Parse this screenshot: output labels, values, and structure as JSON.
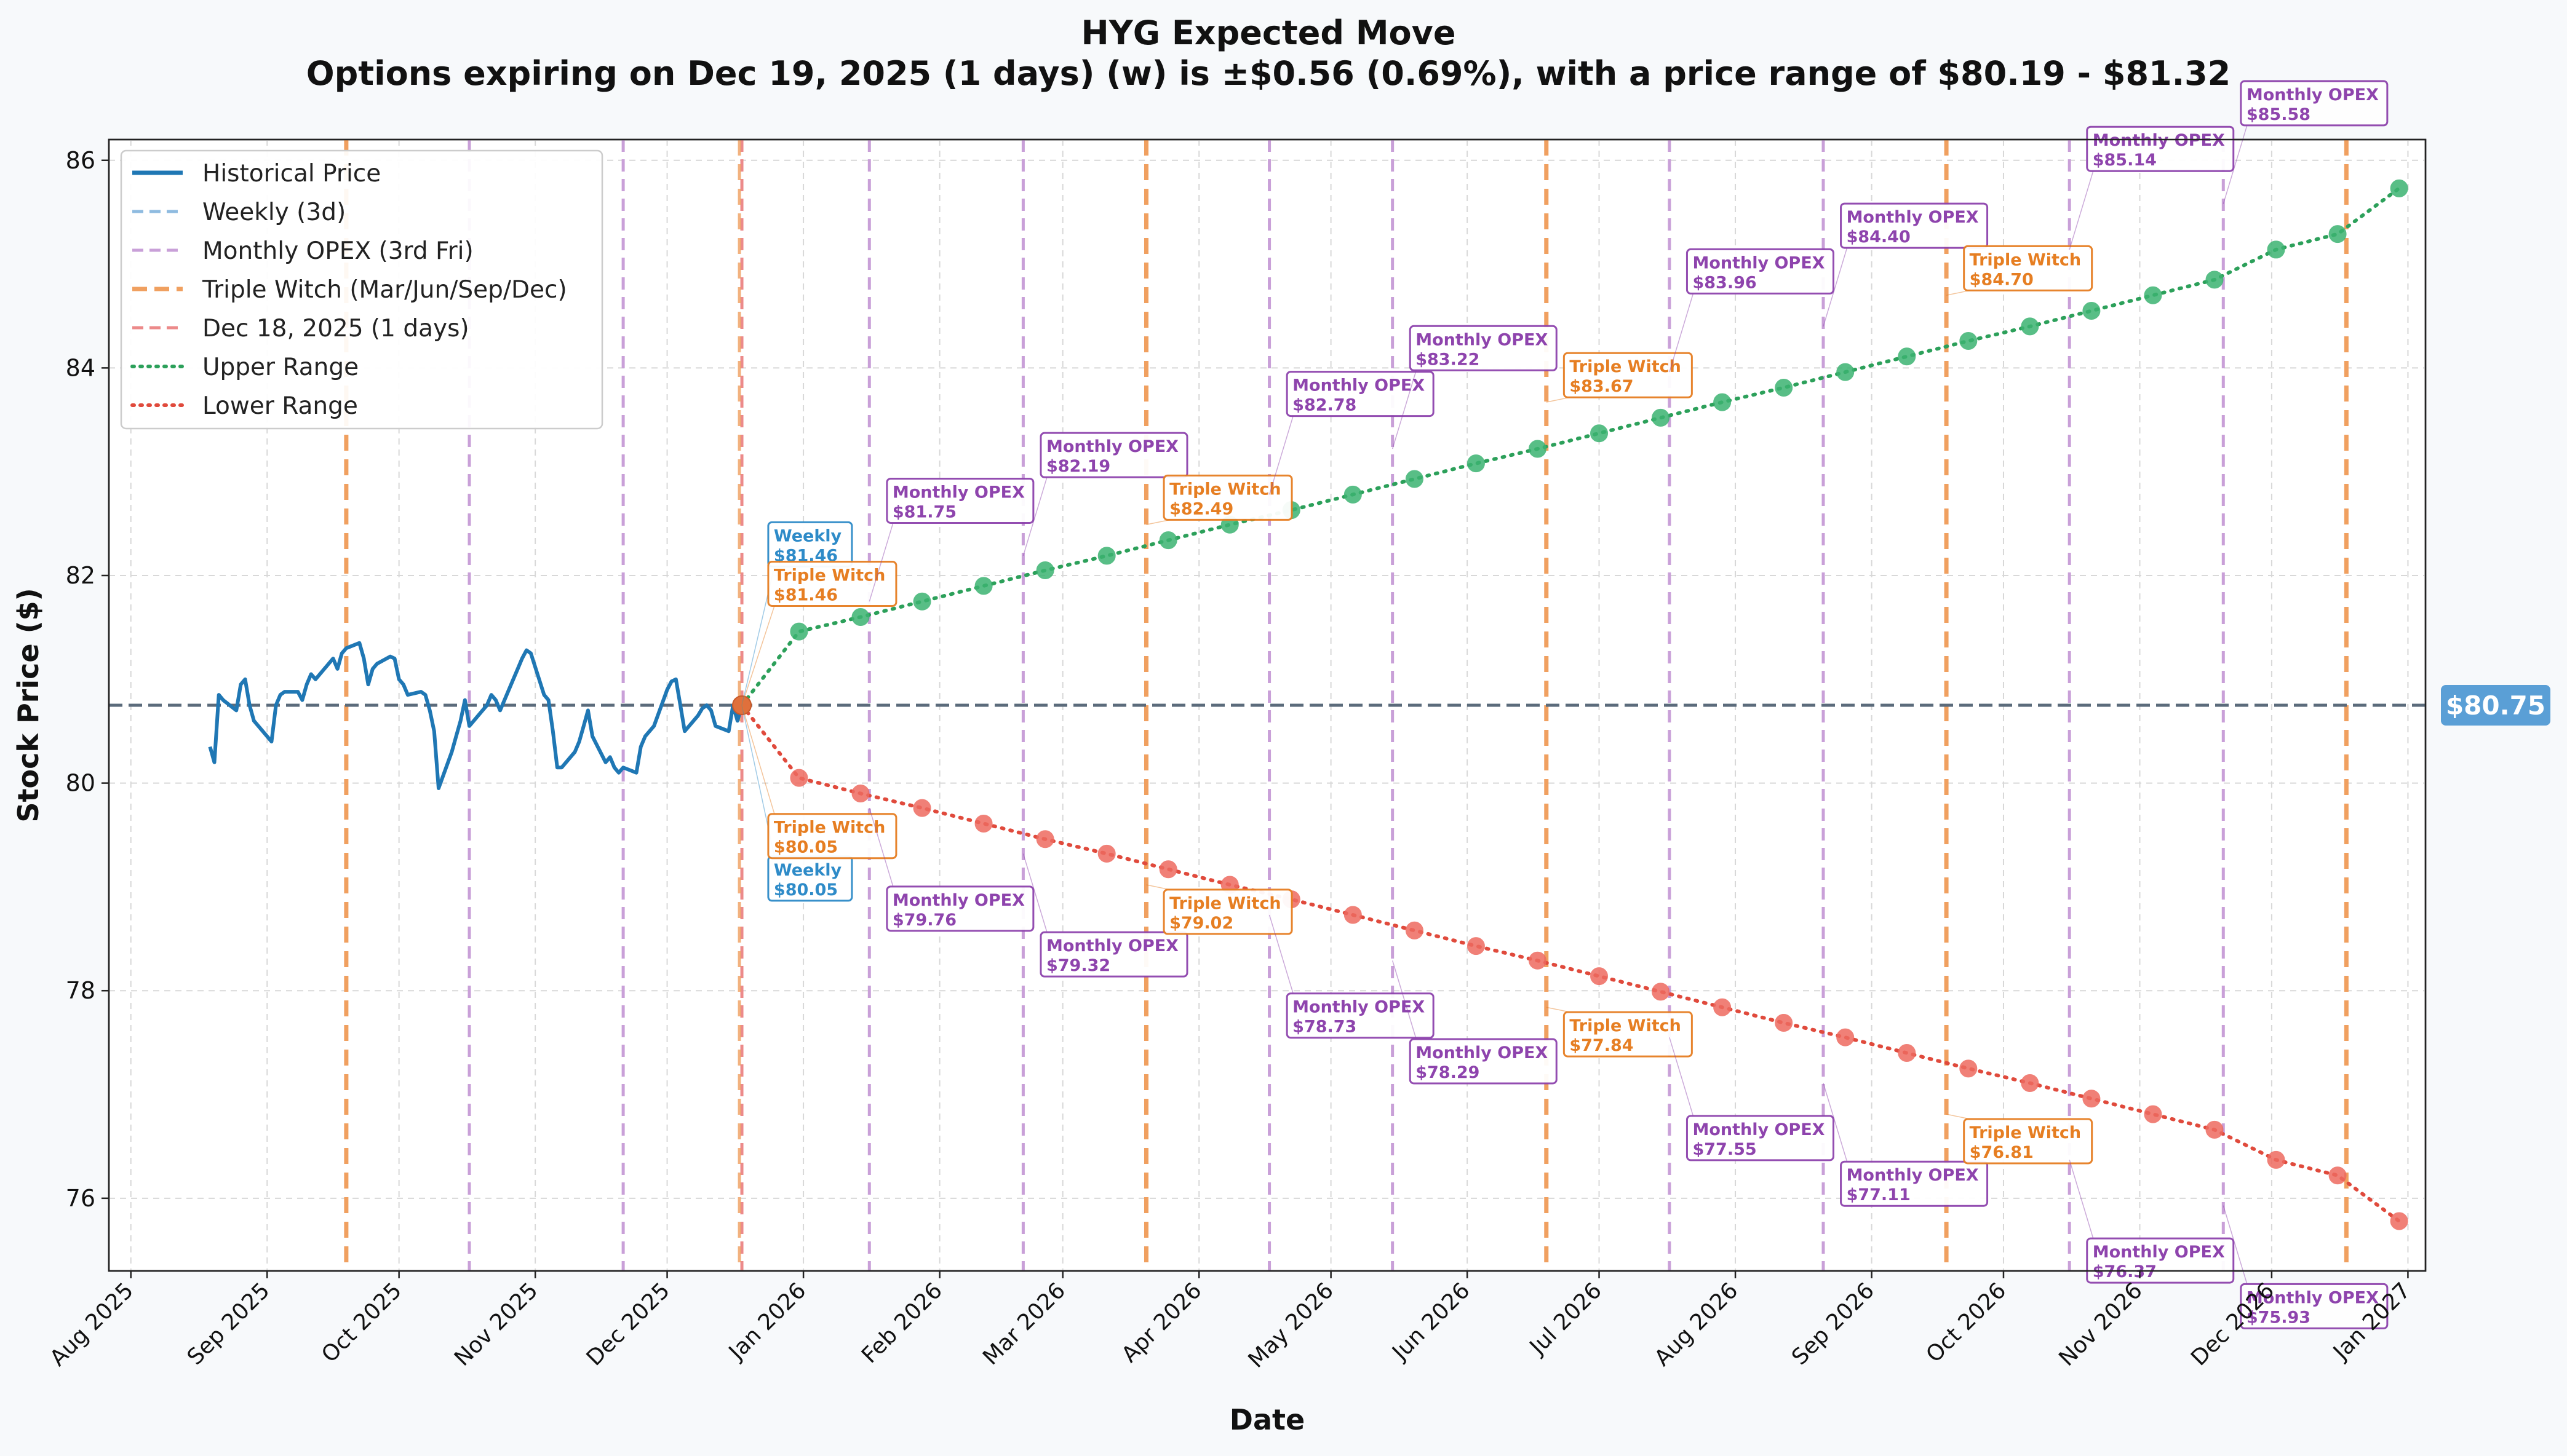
{
  "chart_data": {
    "type": "line",
    "title": "HYG Expected Move",
    "subtitle": "Options expiring on Dec 19, 2025 (1 days) (w) is ±$0.56 (0.69%), with a price range of $80.19 - $81.32",
    "xlabel": "Date",
    "ylabel": "Stock Price ($)",
    "xlim": [
      "2025-07-27",
      "2027-01-05"
    ],
    "ylim": [
      75.3,
      86.2
    ],
    "grid": true,
    "legend_position": "top-left",
    "x_tick_labels": [
      {
        "date": "2025-08-01",
        "label": "Aug 2025"
      },
      {
        "date": "2025-09-01",
        "label": "Sep 2025"
      },
      {
        "date": "2025-10-01",
        "label": "Oct 2025"
      },
      {
        "date": "2025-11-01",
        "label": "Nov 2025"
      },
      {
        "date": "2025-12-01",
        "label": "Dec 2025"
      },
      {
        "date": "2026-01-01",
        "label": "Jan 2026"
      },
      {
        "date": "2026-02-01",
        "label": "Feb 2026"
      },
      {
        "date": "2026-03-01",
        "label": "Mar 2026"
      },
      {
        "date": "2026-04-01",
        "label": "Apr 2026"
      },
      {
        "date": "2026-05-01",
        "label": "May 2026"
      },
      {
        "date": "2026-06-01",
        "label": "Jun 2026"
      },
      {
        "date": "2026-07-01",
        "label": "Jul 2026"
      },
      {
        "date": "2026-08-01",
        "label": "Aug 2026"
      },
      {
        "date": "2026-09-01",
        "label": "Sep 2026"
      },
      {
        "date": "2026-10-01",
        "label": "Oct 2026"
      },
      {
        "date": "2026-11-01",
        "label": "Nov 2026"
      },
      {
        "date": "2026-12-01",
        "label": "Dec 2026"
      },
      {
        "date": "2027-01-01",
        "label": "Jan 2027"
      }
    ],
    "y_ticks": [
      76,
      78,
      80,
      82,
      84,
      86
    ],
    "current_price": {
      "value": 80.75,
      "label": "$80.75",
      "color": "#5a9fd6"
    },
    "legend": [
      {
        "label": "Historical Price",
        "color": "#1f77b4",
        "style": "solid"
      },
      {
        "label": "Weekly (3d)",
        "color": "#8fbbe0",
        "style": "dashed"
      },
      {
        "label": "Monthly OPEX (3rd Fri)",
        "color": "#c9a0d8",
        "style": "dashed"
      },
      {
        "label": "Triple Witch (Mar/Jun/Sep/Dec)",
        "color": "#f0a060",
        "style": "dashed-thick"
      },
      {
        "label": "Dec 18, 2025 (1 days)",
        "color": "#ec8a8a",
        "style": "dashed"
      },
      {
        "label": "Upper Range",
        "color": "#2ca05a",
        "style": "dotted"
      },
      {
        "label": "Lower Range",
        "color": "#e04a3c",
        "style": "dotted"
      }
    ],
    "colors": {
      "historical": "#1f77b4",
      "monthly": "#c9a0d8",
      "triple": "#f0a060",
      "today": "#ec8a8a",
      "upper": "#2ca05a",
      "upper_marker": "#3cb371",
      "lower": "#e04a3c",
      "lower_marker": "#ee6a60",
      "monthly_text": "#8e44ad",
      "triple_text": "#e67e22",
      "weekly_text": "#2e8bc8",
      "current_line": "#5b6b7b"
    },
    "today_date": "2025-12-18",
    "vlines": [
      {
        "date": "2025-09-19",
        "kind": "triple"
      },
      {
        "date": "2025-10-17",
        "kind": "monthly"
      },
      {
        "date": "2025-11-21",
        "kind": "monthly"
      },
      {
        "date": "2026-01-16",
        "kind": "monthly"
      },
      {
        "date": "2026-02-20",
        "kind": "monthly"
      },
      {
        "date": "2026-03-20",
        "kind": "triple"
      },
      {
        "date": "2026-04-17",
        "kind": "monthly"
      },
      {
        "date": "2026-05-15",
        "kind": "monthly"
      },
      {
        "date": "2026-06-19",
        "kind": "triple"
      },
      {
        "date": "2026-07-17",
        "kind": "monthly"
      },
      {
        "date": "2026-08-21",
        "kind": "monthly"
      },
      {
        "date": "2026-09-18",
        "kind": "triple"
      },
      {
        "date": "2026-10-16",
        "kind": "monthly"
      },
      {
        "date": "2026-11-20",
        "kind": "monthly"
      },
      {
        "date": "2026-12-18",
        "kind": "triple"
      }
    ],
    "historical": {
      "name": "Historical Price",
      "x": [
        "2025-08-19",
        "2025-08-20",
        "2025-08-21",
        "2025-08-22",
        "2025-08-25",
        "2025-08-26",
        "2025-08-27",
        "2025-08-28",
        "2025-08-29",
        "2025-09-02",
        "2025-09-03",
        "2025-09-04",
        "2025-09-05",
        "2025-09-08",
        "2025-09-09",
        "2025-09-10",
        "2025-09-11",
        "2025-09-12",
        "2025-09-15",
        "2025-09-16",
        "2025-09-17",
        "2025-09-18",
        "2025-09-19",
        "2025-09-22",
        "2025-09-23",
        "2025-09-24",
        "2025-09-25",
        "2025-09-26",
        "2025-09-29",
        "2025-09-30",
        "2025-10-01",
        "2025-10-02",
        "2025-10-03",
        "2025-10-06",
        "2025-10-07",
        "2025-10-08",
        "2025-10-09",
        "2025-10-10",
        "2025-10-13",
        "2025-10-14",
        "2025-10-15",
        "2025-10-16",
        "2025-10-17",
        "2025-10-20",
        "2025-10-21",
        "2025-10-22",
        "2025-10-23",
        "2025-10-24",
        "2025-10-27",
        "2025-10-28",
        "2025-10-29",
        "2025-10-30",
        "2025-10-31",
        "2025-11-03",
        "2025-11-04",
        "2025-11-05",
        "2025-11-06",
        "2025-11-07",
        "2025-11-10",
        "2025-11-11",
        "2025-11-12",
        "2025-11-13",
        "2025-11-14",
        "2025-11-17",
        "2025-11-18",
        "2025-11-19",
        "2025-11-20",
        "2025-11-21",
        "2025-11-24",
        "2025-11-25",
        "2025-11-26",
        "2025-11-28",
        "2025-12-01",
        "2025-12-02",
        "2025-12-03",
        "2025-12-04",
        "2025-12-05",
        "2025-12-08",
        "2025-12-09",
        "2025-12-10",
        "2025-12-11",
        "2025-12-12",
        "2025-12-15",
        "2025-12-16",
        "2025-12-17",
        "2025-12-18"
      ],
      "y": [
        80.35,
        80.2,
        80.85,
        80.8,
        80.7,
        80.95,
        81.0,
        80.75,
        80.6,
        80.4,
        80.75,
        80.85,
        80.88,
        80.88,
        80.8,
        80.95,
        81.05,
        81.0,
        81.15,
        81.2,
        81.1,
        81.25,
        81.3,
        81.35,
        81.2,
        80.95,
        81.1,
        81.15,
        81.22,
        81.2,
        81.0,
        80.95,
        80.85,
        80.88,
        80.85,
        80.7,
        80.5,
        79.95,
        80.3,
        80.45,
        80.6,
        80.8,
        80.55,
        80.7,
        80.75,
        80.85,
        80.8,
        80.7,
        81.0,
        81.1,
        81.2,
        81.28,
        81.25,
        80.85,
        80.8,
        80.5,
        80.15,
        80.15,
        80.3,
        80.4,
        80.55,
        80.7,
        80.45,
        80.2,
        80.25,
        80.15,
        80.1,
        80.15,
        80.1,
        80.35,
        80.45,
        80.55,
        80.9,
        80.98,
        81.0,
        80.75,
        80.5,
        80.65,
        80.72,
        80.75,
        80.7,
        80.55,
        80.5,
        80.75,
        80.6,
        80.75
      ]
    },
    "upper_range": {
      "name": "Upper Range",
      "x": [
        "2025-12-18",
        "2025-12-31",
        "2026-01-14",
        "2026-01-28",
        "2026-02-11",
        "2026-02-25",
        "2026-03-11",
        "2026-03-25",
        "2026-04-08",
        "2026-04-22",
        "2026-05-06",
        "2026-05-20",
        "2026-06-03",
        "2026-06-17",
        "2026-07-01",
        "2026-07-15",
        "2026-07-29",
        "2026-08-12",
        "2026-08-26",
        "2026-09-09",
        "2026-09-23",
        "2026-10-07",
        "2026-10-21",
        "2026-11-04",
        "2026-11-18",
        "2026-12-02",
        "2026-12-16",
        "2026-12-30"
      ],
      "y": [
        80.75,
        81.46,
        81.6,
        81.75,
        81.9,
        82.05,
        82.19,
        82.34,
        82.49,
        82.63,
        82.78,
        82.93,
        83.08,
        83.22,
        83.37,
        83.52,
        83.67,
        83.81,
        83.96,
        84.11,
        84.26,
        84.4,
        84.55,
        84.7,
        84.85,
        85.14,
        85.29,
        85.73
      ]
    },
    "lower_range": {
      "name": "Lower Range",
      "x": [
        "2025-12-18",
        "2025-12-31",
        "2026-01-14",
        "2026-01-28",
        "2026-02-11",
        "2026-02-25",
        "2026-03-11",
        "2026-03-25",
        "2026-04-08",
        "2026-04-22",
        "2026-05-06",
        "2026-05-20",
        "2026-06-03",
        "2026-06-17",
        "2026-07-01",
        "2026-07-15",
        "2026-07-29",
        "2026-08-12",
        "2026-08-26",
        "2026-09-09",
        "2026-09-23",
        "2026-10-07",
        "2026-10-21",
        "2026-11-04",
        "2026-11-18",
        "2026-12-02",
        "2026-12-16",
        "2026-12-30"
      ],
      "y": [
        80.75,
        80.05,
        79.9,
        79.76,
        79.61,
        79.46,
        79.32,
        79.17,
        79.02,
        78.88,
        78.73,
        78.58,
        78.43,
        78.29,
        78.14,
        77.99,
        77.84,
        77.69,
        77.55,
        77.4,
        77.25,
        77.11,
        76.96,
        76.81,
        76.66,
        76.37,
        76.22,
        75.78
      ]
    },
    "annotations": [
      {
        "kind": "weekly",
        "title": "Weekly",
        "value": "$81.46",
        "box_date": "2025-12-24",
        "box_price": 82.3,
        "point_date": "2025-12-18",
        "point_price": 80.75
      },
      {
        "kind": "triple",
        "title": "Triple Witch",
        "value": "$81.46",
        "box_date": "2025-12-24",
        "box_price": 81.92,
        "point_date": "2025-12-18",
        "point_price": 80.75
      },
      {
        "kind": "monthly",
        "title": "Monthly OPEX",
        "value": "$81.75",
        "box_date": "2026-01-20",
        "box_price": 82.72,
        "point_date": "2026-01-16",
        "point_price": 81.75
      },
      {
        "kind": "monthly",
        "title": "Monthly OPEX",
        "value": "$82.19",
        "box_date": "2026-02-24",
        "box_price": 83.16,
        "point_date": "2026-02-20",
        "point_price": 82.19
      },
      {
        "kind": "triple",
        "title": "Triple Witch",
        "value": "$82.49",
        "box_date": "2026-03-24",
        "box_price": 82.75,
        "point_date": "2026-03-20",
        "point_price": 82.49
      },
      {
        "kind": "monthly",
        "title": "Monthly OPEX",
        "value": "$82.78",
        "box_date": "2026-04-21",
        "box_price": 83.75,
        "point_date": "2026-04-17",
        "point_price": 82.78
      },
      {
        "kind": "monthly",
        "title": "Monthly OPEX",
        "value": "$83.22",
        "box_date": "2026-05-19",
        "box_price": 84.19,
        "point_date": "2026-05-15",
        "point_price": 83.22
      },
      {
        "kind": "triple",
        "title": "Triple Witch",
        "value": "$83.67",
        "box_date": "2026-06-23",
        "box_price": 83.93,
        "point_date": "2026-06-19",
        "point_price": 83.67
      },
      {
        "kind": "monthly",
        "title": "Monthly OPEX",
        "value": "$83.96",
        "box_date": "2026-07-21",
        "box_price": 84.93,
        "point_date": "2026-07-17",
        "point_price": 83.96
      },
      {
        "kind": "monthly",
        "title": "Monthly OPEX",
        "value": "$84.40",
        "box_date": "2026-08-25",
        "box_price": 85.37,
        "point_date": "2026-08-21",
        "point_price": 84.4
      },
      {
        "kind": "triple",
        "title": "Triple Witch",
        "value": "$84.70",
        "box_date": "2026-09-22",
        "box_price": 84.96,
        "point_date": "2026-09-18",
        "point_price": 84.7
      },
      {
        "kind": "monthly",
        "title": "Monthly OPEX",
        "value": "$85.14",
        "box_date": "2026-10-20",
        "box_price": 86.11,
        "point_date": "2026-10-16",
        "point_price": 85.14
      },
      {
        "kind": "monthly",
        "title": "Monthly OPEX",
        "value": "$85.58",
        "box_date": "2026-11-24",
        "box_price": 86.55,
        "point_date": "2026-11-20",
        "point_price": 85.58
      },
      {
        "kind": "weekly",
        "title": "Weekly",
        "value": "$80.05",
        "box_date": "2025-12-24",
        "box_price": 79.08,
        "point_date": "2025-12-18",
        "point_price": 80.75
      },
      {
        "kind": "triple",
        "title": "Triple Witch",
        "value": "$80.05",
        "box_date": "2025-12-24",
        "box_price": 79.49,
        "point_date": "2025-12-18",
        "point_price": 80.75
      },
      {
        "kind": "monthly",
        "title": "Monthly OPEX",
        "value": "$79.76",
        "box_date": "2026-01-20",
        "box_price": 78.79,
        "point_date": "2026-01-16",
        "point_price": 79.76
      },
      {
        "kind": "monthly",
        "title": "Monthly OPEX",
        "value": "$79.32",
        "box_date": "2026-02-24",
        "box_price": 78.35,
        "point_date": "2026-02-20",
        "point_price": 79.32
      },
      {
        "kind": "triple",
        "title": "Triple Witch",
        "value": "$79.02",
        "box_date": "2026-03-24",
        "box_price": 78.76,
        "point_date": "2026-03-20",
        "point_price": 79.02
      },
      {
        "kind": "monthly",
        "title": "Monthly OPEX",
        "value": "$78.73",
        "box_date": "2026-04-21",
        "box_price": 77.76,
        "point_date": "2026-04-17",
        "point_price": 78.73
      },
      {
        "kind": "monthly",
        "title": "Monthly OPEX",
        "value": "$78.29",
        "box_date": "2026-05-19",
        "box_price": 77.32,
        "point_date": "2026-05-15",
        "point_price": 78.29
      },
      {
        "kind": "triple",
        "title": "Triple Witch",
        "value": "$77.84",
        "box_date": "2026-06-23",
        "box_price": 77.58,
        "point_date": "2026-06-19",
        "point_price": 77.84
      },
      {
        "kind": "monthly",
        "title": "Monthly OPEX",
        "value": "$77.55",
        "box_date": "2026-07-21",
        "box_price": 76.58,
        "point_date": "2026-07-17",
        "point_price": 77.55
      },
      {
        "kind": "monthly",
        "title": "Monthly OPEX",
        "value": "$77.11",
        "box_date": "2026-08-25",
        "box_price": 76.14,
        "point_date": "2026-08-21",
        "point_price": 77.11
      },
      {
        "kind": "triple",
        "title": "Triple Witch",
        "value": "$76.81",
        "box_date": "2026-09-22",
        "box_price": 76.55,
        "point_date": "2026-09-18",
        "point_price": 76.81
      },
      {
        "kind": "monthly",
        "title": "Monthly OPEX",
        "value": "$76.37",
        "box_date": "2026-10-20",
        "box_price": 75.4,
        "point_date": "2026-10-16",
        "point_price": 76.37
      },
      {
        "kind": "monthly",
        "title": "Monthly OPEX",
        "value": "$75.93",
        "box_date": "2026-11-24",
        "box_price": 74.96,
        "point_date": "2026-11-20",
        "point_price": 75.93
      }
    ]
  }
}
